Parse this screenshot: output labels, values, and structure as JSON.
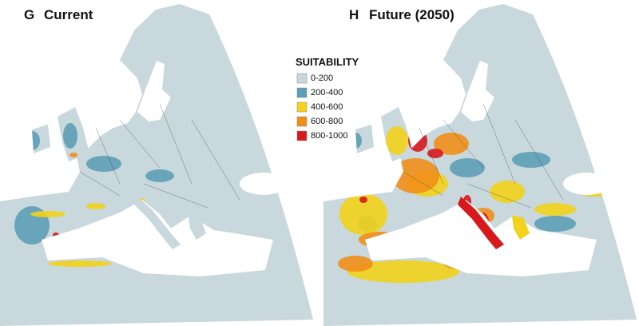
{
  "panels": [
    {
      "letter": "G",
      "title": "Current"
    },
    {
      "letter": "H",
      "title": "Future (2050)"
    }
  ],
  "legend": {
    "title": "SUITABILITY",
    "items": [
      {
        "label": "0-200",
        "color": "#c8d8dc"
      },
      {
        "label": "200-400",
        "color": "#5d9fb6"
      },
      {
        "label": "400-600",
        "color": "#f2d21b"
      },
      {
        "label": "600-800",
        "color": "#ef8f1a"
      },
      {
        "label": "800-1000",
        "color": "#d7191c"
      }
    ]
  }
}
